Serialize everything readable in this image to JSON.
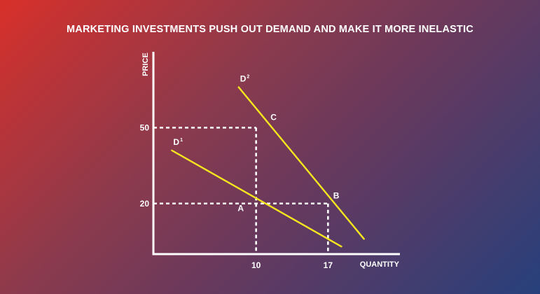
{
  "chart_data": {
    "type": "line",
    "title": "MARKETING INVESTMENTS PUSH OUT DEMAND AND MAKE IT MORE INELASTIC",
    "xlabel": "QUANTITY",
    "ylabel": "PRICE",
    "xlim": [
      0,
      24
    ],
    "ylim": [
      0,
      80
    ],
    "x_ticks": [
      10,
      17
    ],
    "y_ticks": [
      20,
      50
    ],
    "grid": false,
    "series": [
      {
        "name": "D",
        "superscript": "1",
        "color": "#f6e61e",
        "points": [
          [
            1.8,
            41
          ],
          [
            18.3,
            3
          ]
        ]
      },
      {
        "name": "D",
        "superscript": "2",
        "color": "#f6e61e",
        "points": [
          [
            8.3,
            66
          ],
          [
            20.5,
            6
          ]
        ]
      }
    ],
    "reference_lines": {
      "color": "#ffffff",
      "segments": [
        {
          "from": [
            0,
            50
          ],
          "to": [
            10,
            50
          ]
        },
        {
          "from": [
            10,
            50
          ],
          "to": [
            10,
            0
          ]
        },
        {
          "from": [
            0,
            20
          ],
          "to": [
            17,
            20
          ]
        },
        {
          "from": [
            17,
            20
          ],
          "to": [
            17,
            0
          ]
        }
      ]
    },
    "point_labels": [
      {
        "text": "C",
        "at": [
          11.7,
          53
        ]
      },
      {
        "text": "B",
        "at": [
          17.8,
          22
        ]
      },
      {
        "text": "A",
        "at": [
          8.5,
          17
        ]
      }
    ]
  }
}
